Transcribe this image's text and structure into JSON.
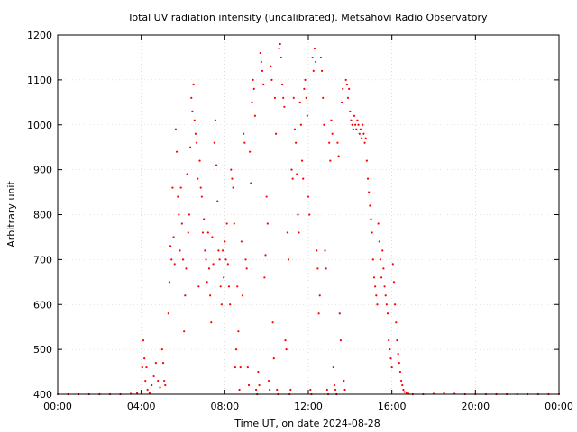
{
  "chart_data": {
    "type": "scatter",
    "title": "Total UV radiation intensity (uncalibrated). Metsähovi Radio Observatory",
    "xlabel": "Time UT, on date 2024-08-28",
    "ylabel": "Arbitrary unit",
    "x_unit": "hours UT",
    "xlim": [
      0,
      24
    ],
    "ylim": [
      400,
      1200
    ],
    "x_ticks": [
      {
        "value": 0,
        "label": "00:00"
      },
      {
        "value": 4,
        "label": "04:00"
      },
      {
        "value": 8,
        "label": "08:00"
      },
      {
        "value": 12,
        "label": "12:00"
      },
      {
        "value": 16,
        "label": "16:00"
      },
      {
        "value": 20,
        "label": "20:00"
      },
      {
        "value": 24,
        "label": "00:00"
      }
    ],
    "y_ticks": [
      {
        "value": 400,
        "label": "400"
      },
      {
        "value": 500,
        "label": "500"
      },
      {
        "value": 600,
        "label": "600"
      },
      {
        "value": 700,
        "label": "700"
      },
      {
        "value": 800,
        "label": "800"
      },
      {
        "value": 900,
        "label": "900"
      },
      {
        "value": 1000,
        "label": "1000"
      },
      {
        "value": 1100,
        "label": "1100"
      },
      {
        "value": 1200,
        "label": "1200"
      }
    ],
    "grid": true,
    "legend": "none",
    "marker_color": "#ff0000",
    "series": [
      {
        "points": [
          [
            0.0,
            400
          ],
          [
            0.5,
            400
          ],
          [
            1.0,
            400
          ],
          [
            1.5,
            400
          ],
          [
            2.0,
            400
          ],
          [
            2.5,
            400
          ],
          [
            3.0,
            400
          ],
          [
            3.5,
            401
          ],
          [
            3.8,
            402
          ],
          [
            4.0,
            405
          ],
          [
            4.05,
            460
          ],
          [
            4.1,
            520
          ],
          [
            4.15,
            480
          ],
          [
            4.2,
            430
          ],
          [
            4.25,
            460
          ],
          [
            4.3,
            410
          ],
          [
            4.4,
            402
          ],
          [
            4.5,
            420
          ],
          [
            4.6,
            440
          ],
          [
            4.7,
            470
          ],
          [
            4.8,
            430
          ],
          [
            4.9,
            415
          ],
          [
            5.0,
            500
          ],
          [
            5.05,
            470
          ],
          [
            5.1,
            430
          ],
          [
            5.15,
            420
          ],
          [
            5.3,
            580
          ],
          [
            5.35,
            650
          ],
          [
            5.4,
            730
          ],
          [
            5.45,
            700
          ],
          [
            5.5,
            860
          ],
          [
            5.55,
            750
          ],
          [
            5.6,
            690
          ],
          [
            5.65,
            990
          ],
          [
            5.7,
            940
          ],
          [
            5.75,
            840
          ],
          [
            5.8,
            800
          ],
          [
            5.85,
            720
          ],
          [
            5.9,
            860
          ],
          [
            5.95,
            780
          ],
          [
            6.0,
            700
          ],
          [
            6.05,
            540
          ],
          [
            6.1,
            620
          ],
          [
            6.15,
            680
          ],
          [
            6.2,
            890
          ],
          [
            6.25,
            760
          ],
          [
            6.3,
            800
          ],
          [
            6.35,
            950
          ],
          [
            6.4,
            1060
          ],
          [
            6.45,
            1030
          ],
          [
            6.5,
            1090
          ],
          [
            6.55,
            1010
          ],
          [
            6.6,
            980
          ],
          [
            6.65,
            960
          ],
          [
            6.7,
            880
          ],
          [
            6.75,
            640
          ],
          [
            6.8,
            920
          ],
          [
            6.85,
            860
          ],
          [
            6.9,
            840
          ],
          [
            6.95,
            760
          ],
          [
            7.0,
            790
          ],
          [
            7.05,
            720
          ],
          [
            7.1,
            700
          ],
          [
            7.15,
            650
          ],
          [
            7.2,
            760
          ],
          [
            7.25,
            680
          ],
          [
            7.3,
            620
          ],
          [
            7.35,
            560
          ],
          [
            7.4,
            750
          ],
          [
            7.45,
            690
          ],
          [
            7.5,
            960
          ],
          [
            7.55,
            1010
          ],
          [
            7.6,
            910
          ],
          [
            7.65,
            830
          ],
          [
            7.7,
            720
          ],
          [
            7.75,
            700
          ],
          [
            7.8,
            640
          ],
          [
            7.85,
            600
          ],
          [
            7.9,
            720
          ],
          [
            7.95,
            660
          ],
          [
            8.0,
            740
          ],
          [
            8.05,
            700
          ],
          [
            8.1,
            780
          ],
          [
            8.15,
            690
          ],
          [
            8.2,
            640
          ],
          [
            8.25,
            600
          ],
          [
            8.3,
            900
          ],
          [
            8.35,
            880
          ],
          [
            8.4,
            860
          ],
          [
            8.45,
            780
          ],
          [
            8.5,
            460
          ],
          [
            8.55,
            500
          ],
          [
            8.6,
            640
          ],
          [
            8.65,
            540
          ],
          [
            8.7,
            410
          ],
          [
            8.75,
            460
          ],
          [
            8.8,
            740
          ],
          [
            8.85,
            620
          ],
          [
            8.9,
            980
          ],
          [
            8.95,
            960
          ],
          [
            9.0,
            700
          ],
          [
            9.05,
            680
          ],
          [
            9.1,
            460
          ],
          [
            9.15,
            420
          ],
          [
            9.2,
            940
          ],
          [
            9.25,
            870
          ],
          [
            9.3,
            1050
          ],
          [
            9.35,
            1100
          ],
          [
            9.4,
            1080
          ],
          [
            9.45,
            1020
          ],
          [
            9.5,
            410
          ],
          [
            9.55,
            400
          ],
          [
            9.6,
            450
          ],
          [
            9.65,
            420
          ],
          [
            9.7,
            1160
          ],
          [
            9.75,
            1140
          ],
          [
            9.8,
            1120
          ],
          [
            9.85,
            1090
          ],
          [
            9.9,
            660
          ],
          [
            9.95,
            710
          ],
          [
            10.0,
            840
          ],
          [
            10.05,
            780
          ],
          [
            10.1,
            430
          ],
          [
            10.15,
            410
          ],
          [
            10.2,
            1130
          ],
          [
            10.25,
            1100
          ],
          [
            10.3,
            560
          ],
          [
            10.35,
            480
          ],
          [
            10.4,
            1060
          ],
          [
            10.45,
            980
          ],
          [
            10.5,
            410
          ],
          [
            10.55,
            400
          ],
          [
            10.6,
            1170
          ],
          [
            10.65,
            1180
          ],
          [
            10.7,
            1150
          ],
          [
            10.75,
            1090
          ],
          [
            10.8,
            1060
          ],
          [
            10.85,
            1040
          ],
          [
            10.9,
            520
          ],
          [
            10.95,
            500
          ],
          [
            11.0,
            760
          ],
          [
            11.05,
            700
          ],
          [
            11.1,
            400
          ],
          [
            11.15,
            410
          ],
          [
            11.2,
            900
          ],
          [
            11.25,
            880
          ],
          [
            11.3,
            1060
          ],
          [
            11.35,
            990
          ],
          [
            11.4,
            960
          ],
          [
            11.45,
            890
          ],
          [
            11.5,
            800
          ],
          [
            11.55,
            760
          ],
          [
            11.6,
            1050
          ],
          [
            11.65,
            1000
          ],
          [
            11.7,
            920
          ],
          [
            11.75,
            880
          ],
          [
            11.8,
            1080
          ],
          [
            11.85,
            1100
          ],
          [
            11.9,
            1060
          ],
          [
            11.95,
            1020
          ],
          [
            12.0,
            840
          ],
          [
            12.05,
            800
          ],
          [
            12.1,
            410
          ],
          [
            12.15,
            400
          ],
          [
            12.2,
            1150
          ],
          [
            12.25,
            1120
          ],
          [
            12.3,
            1170
          ],
          [
            12.35,
            1140
          ],
          [
            12.4,
            720
          ],
          [
            12.45,
            680
          ],
          [
            12.5,
            580
          ],
          [
            12.55,
            620
          ],
          [
            12.6,
            1150
          ],
          [
            12.65,
            1120
          ],
          [
            12.7,
            1060
          ],
          [
            12.75,
            1000
          ],
          [
            12.8,
            720
          ],
          [
            12.85,
            680
          ],
          [
            12.9,
            410
          ],
          [
            12.95,
            400
          ],
          [
            13.0,
            960
          ],
          [
            13.05,
            920
          ],
          [
            13.1,
            1010
          ],
          [
            13.15,
            980
          ],
          [
            13.2,
            460
          ],
          [
            13.25,
            420
          ],
          [
            13.3,
            410
          ],
          [
            13.35,
            400
          ],
          [
            13.4,
            960
          ],
          [
            13.45,
            930
          ],
          [
            13.5,
            580
          ],
          [
            13.55,
            520
          ],
          [
            13.6,
            1050
          ],
          [
            13.65,
            1080
          ],
          [
            13.7,
            430
          ],
          [
            13.75,
            410
          ],
          [
            13.8,
            1100
          ],
          [
            13.85,
            1090
          ],
          [
            13.9,
            1060
          ],
          [
            13.95,
            1080
          ],
          [
            14.0,
            1030
          ],
          [
            14.05,
            1010
          ],
          [
            14.1,
            1000
          ],
          [
            14.15,
            990
          ],
          [
            14.2,
            1020
          ],
          [
            14.25,
            1000
          ],
          [
            14.3,
            990
          ],
          [
            14.35,
            1010
          ],
          [
            14.4,
            1000
          ],
          [
            14.45,
            980
          ],
          [
            14.5,
            990
          ],
          [
            14.55,
            970
          ],
          [
            14.6,
            1000
          ],
          [
            14.65,
            980
          ],
          [
            14.7,
            960
          ],
          [
            14.75,
            970
          ],
          [
            14.8,
            920
          ],
          [
            14.85,
            880
          ],
          [
            14.9,
            850
          ],
          [
            14.95,
            820
          ],
          [
            15.0,
            790
          ],
          [
            15.05,
            760
          ],
          [
            15.1,
            700
          ],
          [
            15.15,
            660
          ],
          [
            15.2,
            640
          ],
          [
            15.25,
            620
          ],
          [
            15.3,
            600
          ],
          [
            15.35,
            780
          ],
          [
            15.4,
            740
          ],
          [
            15.45,
            700
          ],
          [
            15.5,
            660
          ],
          [
            15.55,
            720
          ],
          [
            15.6,
            680
          ],
          [
            15.65,
            640
          ],
          [
            15.7,
            620
          ],
          [
            15.75,
            600
          ],
          [
            15.8,
            580
          ],
          [
            15.85,
            520
          ],
          [
            15.9,
            500
          ],
          [
            15.95,
            480
          ],
          [
            16.0,
            460
          ],
          [
            16.05,
            690
          ],
          [
            16.1,
            650
          ],
          [
            16.15,
            600
          ],
          [
            16.2,
            560
          ],
          [
            16.25,
            520
          ],
          [
            16.3,
            490
          ],
          [
            16.35,
            470
          ],
          [
            16.4,
            450
          ],
          [
            16.45,
            430
          ],
          [
            16.5,
            420
          ],
          [
            16.55,
            410
          ],
          [
            16.6,
            405
          ],
          [
            16.7,
            402
          ],
          [
            16.8,
            401
          ],
          [
            17.0,
            400
          ],
          [
            17.5,
            400
          ],
          [
            18.0,
            401
          ],
          [
            18.5,
            402
          ],
          [
            19.0,
            401
          ],
          [
            19.5,
            400
          ],
          [
            20.0,
            400
          ],
          [
            20.5,
            400
          ],
          [
            21.0,
            400
          ],
          [
            21.5,
            400
          ],
          [
            22.0,
            400
          ],
          [
            22.5,
            400
          ],
          [
            23.0,
            400
          ],
          [
            23.5,
            400
          ],
          [
            24.0,
            400
          ]
        ]
      }
    ]
  }
}
